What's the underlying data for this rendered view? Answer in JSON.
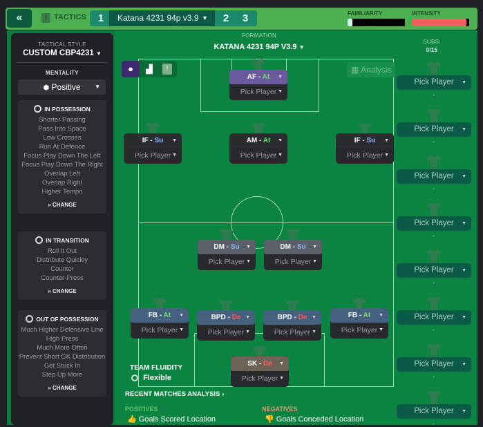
{
  "topbar": {
    "back_icon": "double-chevron-left",
    "tactics_label": "TACTICS",
    "slots": [
      "1",
      "2",
      "3"
    ],
    "tactic_name": "Katana 4231 94p v3.9",
    "familiarity_label": "FAMILIARITY",
    "intensity_label": "INTENSITY",
    "familiarity_level": 0.08,
    "intensity_level": 0.95
  },
  "left": {
    "tactical_style_label": "TACTICAL STYLE",
    "tactical_style": "CUSTOM CBP4231",
    "mentality_label": "MENTALITY",
    "mentality": "Positive",
    "sections": [
      {
        "title": "IN POSSESSION",
        "items": [
          "Shorter Passing",
          "Pass Into Space",
          "Low Crosses",
          "Run At Defence",
          "Focus Play Down The Left",
          "Focus Play Down The Right",
          "Overlap Left",
          "Overlap Right",
          "Higher Tempo"
        ],
        "change": "CHANGE"
      },
      {
        "title": "IN TRANSITION",
        "items": [
          "Roll It Out",
          "Distribute Quickly",
          "Counter",
          "Counter-Press"
        ],
        "change": "CHANGE"
      },
      {
        "title": "OUT OF POSSESSION",
        "items": [
          "Much Higher Defensive Line",
          "High Press",
          "Much More Often",
          "Prevent Short GK Distribution",
          "Get Stuck In",
          "Step Up More"
        ],
        "change": "CHANGE"
      }
    ]
  },
  "formation": {
    "label": "FORMATION",
    "name": "KATANA 4231 94P V3.9",
    "analysis": "Analysis",
    "subs_label": "SUBS:",
    "subs_count": "0/15"
  },
  "positions": [
    {
      "role": "AF",
      "duty": "At",
      "player": "Pick Player"
    },
    {
      "role": "IF",
      "duty": "Su",
      "player": "Pick Player"
    },
    {
      "role": "AM",
      "duty": "At",
      "player": "Pick Player"
    },
    {
      "role": "IF",
      "duty": "Su",
      "player": "Pick Player"
    },
    {
      "role": "DM",
      "duty": "Su",
      "player": "Pick Player"
    },
    {
      "role": "DM",
      "duty": "Su",
      "player": "Pick Player"
    },
    {
      "role": "FB",
      "duty": "At",
      "player": "Pick Player"
    },
    {
      "role": "BPD",
      "duty": "De",
      "player": "Pick Player"
    },
    {
      "role": "BPD",
      "duty": "De",
      "player": "Pick Player"
    },
    {
      "role": "FB",
      "duty": "At",
      "player": "Pick Player"
    },
    {
      "role": "SK",
      "duty": "De",
      "player": "Pick Player"
    }
  ],
  "duty_colors": {
    "At": "#6fdc6f",
    "Su": "#8fb8ff",
    "De": "#ff5a5a"
  },
  "subs": [
    "Pick Player",
    "Pick Player",
    "Pick Player",
    "Pick Player",
    "Pick Player",
    "Pick Player",
    "Pick Player",
    "Pick Player"
  ],
  "sub_dash": "-",
  "fluidity": {
    "label": "TEAM FLUIDITY",
    "value": "Flexible"
  },
  "analysis": {
    "title": "RECENT MATCHES ANALYSIS",
    "positives_label": "POSITIVES",
    "positive": "Goals Scored Location",
    "negatives_label": "NEGATIVES",
    "negative": "Goals Conceded Location"
  }
}
